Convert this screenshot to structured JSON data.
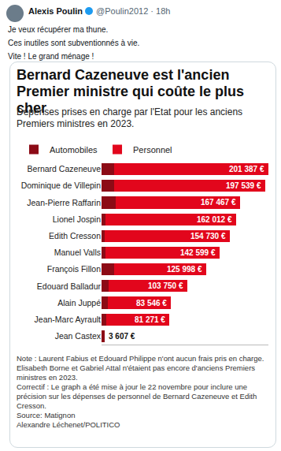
{
  "tweet": {
    "author": "Alexis Poulin",
    "meta": "@Poulin2012 · 18h",
    "text": [
      "Je veux récupérer ma thune.",
      "Ces inutiles sont subventionnés à vie.",
      "Vite ! Le grand ménage !"
    ]
  },
  "chart_data": {
    "type": "bar",
    "orientation": "horizontal",
    "stacked": true,
    "title": "Bernard Cazeneuve est l'ancien Premier ministre qui coûte le plus cher",
    "subtitle": "Dépenses prises en charge par l'Etat pour les anciens Premiers ministres en 2023.",
    "categories": [
      "Bernard Cazeneuve",
      "Dominique de Villepin",
      "Jean-Pierre Raffarin",
      "Lionel Jospin",
      "Edith Cresson",
      "Manuel Valls",
      "François Fillon",
      "Edouard Balladur",
      "Alain Juppé",
      "Jean-Marc Ayrault",
      "Jean Castex"
    ],
    "series": [
      {
        "name": "Automobiles",
        "color": "#8c0b16",
        "values": [
          15000,
          15000,
          17000,
          5000,
          3500,
          4500,
          15000,
          9000,
          8000,
          6000,
          3607
        ]
      },
      {
        "name": "Personnel",
        "color": "#e2061c",
        "values": [
          186387,
          182539,
          150467,
          157012,
          151230,
          138099,
          110998,
          94750,
          75546,
          75271,
          0
        ]
      }
    ],
    "totals": [
      201387,
      197539,
      167467,
      162012,
      154730,
      142599,
      125998,
      103750,
      83546,
      81271,
      3607
    ],
    "total_labels": [
      "201 387 €",
      "197 539 €",
      "167 467 €",
      "162 012 €",
      "154 730 €",
      "142 599 €",
      "125 998 €",
      "103 750 €",
      "83 546 €",
      "81 271 €",
      "3 607 €"
    ],
    "data_labels": true,
    "xlim": [
      0,
      201387
    ],
    "xticks": [],
    "tick_labels": "y",
    "grid": false,
    "legend": "top-left"
  },
  "footer": [
    "Note : Laurent Fabius et Edouard Philippe n'ont aucun frais pris en charge. Elisabeth Borne et Gabriel Attal n'étaient pas encore d'anciens Premiers ministres en 2023.",
    "Correctif : Le graph a été mise à jour le 22 novembre pour inclure une précision sur les dépenses de personnel de Bernard Cazeneuve et Edith Cresson.",
    "Source: Matignon",
    "Alexandre Léchenet/POLITICO"
  ]
}
